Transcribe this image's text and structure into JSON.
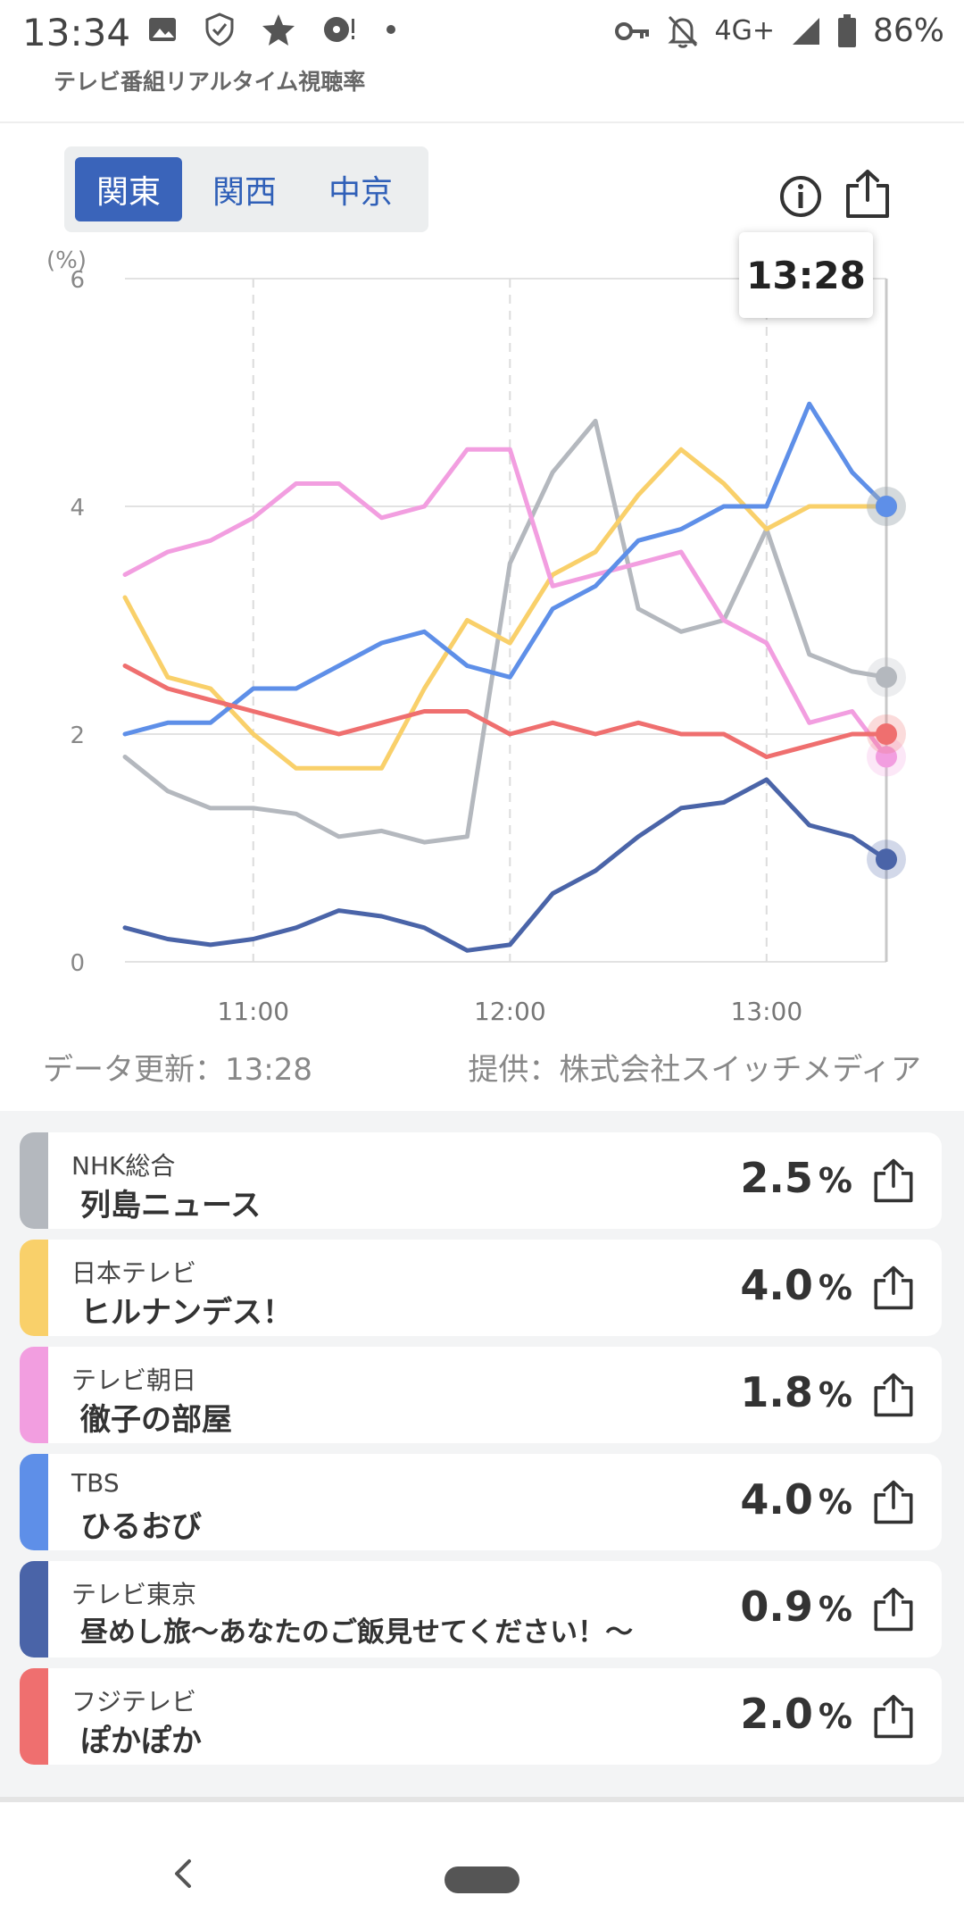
{
  "status_bar": {
    "time": "13:34",
    "network": "4G+",
    "battery": "86%",
    "left_icons": [
      "image-icon",
      "shield-icon",
      "star-icon",
      "disc-icon",
      "dot-icon"
    ],
    "right_icons": [
      "key-icon",
      "bell-off-icon",
      "signal-icon",
      "battery-icon"
    ]
  },
  "app_title": "テレビ番組リアルタイム視聴率",
  "region_tabs": [
    {
      "label": "関東",
      "active": true
    },
    {
      "label": "関西",
      "active": false
    },
    {
      "label": "中京",
      "active": false
    }
  ],
  "tooltip_time": "13:28",
  "footer": {
    "update": "データ更新：13:28",
    "provider": "提供：株式会社スイッチメディア"
  },
  "colors": {
    "nhk": "#b4b8be",
    "ntv": "#f9d06a",
    "tvasahi": "#f29ee0",
    "tbs": "#5e8fe8",
    "tvtokyo": "#4a64a8",
    "fuji": "#ef6f6f",
    "accent": "#3a64ba"
  },
  "channels": [
    {
      "channel": "NHK総合",
      "program": "列島ニュース",
      "rating": "2.5",
      "unit": "%",
      "color": "#b4b8be"
    },
    {
      "channel": "日本テレビ",
      "program": "ヒルナンデス！",
      "rating": "4.0",
      "unit": "%",
      "color": "#f9d06a"
    },
    {
      "channel": "テレビ朝日",
      "program": "徹子の部屋",
      "rating": "1.8",
      "unit": "%",
      "color": "#f29ee0"
    },
    {
      "channel": "TBS",
      "program": "ひるおび",
      "rating": "4.0",
      "unit": "%",
      "color": "#5e8fe8"
    },
    {
      "channel": "テレビ東京",
      "program": "昼めし旅〜あなたのご飯見せてください！〜",
      "rating": "0.9",
      "unit": "%",
      "color": "#4a64a8"
    },
    {
      "channel": "フジテレビ",
      "program": "ぽかぽか",
      "rating": "2.0",
      "unit": "%",
      "color": "#ef6f6f"
    }
  ],
  "chart_data": {
    "type": "line",
    "ylabel": "(%)",
    "ylim": [
      0,
      6
    ],
    "yticks": [
      "0",
      "2",
      "4",
      "6"
    ],
    "xlim": [
      "10:30",
      "13:28"
    ],
    "xticks": [
      "11:00",
      "12:00",
      "13:00"
    ],
    "grid": true,
    "x": [
      "10:30",
      "10:40",
      "10:50",
      "11:00",
      "11:10",
      "11:20",
      "11:30",
      "11:40",
      "11:50",
      "12:00",
      "12:10",
      "12:20",
      "12:30",
      "12:40",
      "12:50",
      "13:00",
      "13:10",
      "13:20",
      "13:28"
    ],
    "series": [
      {
        "name": "NHK総合",
        "color": "#b4b8be",
        "values": [
          1.8,
          1.5,
          1.35,
          1.35,
          1.3,
          1.1,
          1.15,
          1.05,
          1.1,
          3.5,
          4.3,
          4.75,
          3.1,
          2.9,
          3.0,
          3.8,
          2.7,
          2.55,
          2.5
        ]
      },
      {
        "name": "日本テレビ",
        "color": "#f9d06a",
        "values": [
          3.2,
          2.5,
          2.4,
          2.0,
          1.7,
          1.7,
          1.7,
          2.4,
          3.0,
          2.8,
          3.4,
          3.6,
          4.1,
          4.5,
          4.2,
          3.8,
          4.0,
          4.0,
          4.0
        ]
      },
      {
        "name": "テレビ朝日",
        "color": "#f29ee0",
        "values": [
          3.4,
          3.6,
          3.7,
          3.9,
          4.2,
          4.2,
          3.9,
          4.0,
          4.5,
          4.5,
          3.3,
          3.4,
          3.5,
          3.6,
          3.0,
          2.8,
          2.1,
          2.2,
          1.8
        ]
      },
      {
        "name": "TBS",
        "color": "#5e8fe8",
        "values": [
          2.0,
          2.1,
          2.1,
          2.4,
          2.4,
          2.6,
          2.8,
          2.9,
          2.6,
          2.5,
          3.1,
          3.3,
          3.7,
          3.8,
          4.0,
          4.0,
          4.9,
          4.3,
          4.0
        ]
      },
      {
        "name": "テレビ東京",
        "color": "#4a64a8",
        "values": [
          0.3,
          0.2,
          0.15,
          0.2,
          0.3,
          0.45,
          0.4,
          0.3,
          0.1,
          0.15,
          0.6,
          0.8,
          1.1,
          1.35,
          1.4,
          1.6,
          1.2,
          1.1,
          0.9
        ]
      },
      {
        "name": "フジテレビ",
        "color": "#ef6f6f",
        "values": [
          2.6,
          2.4,
          2.3,
          2.2,
          2.1,
          2.0,
          2.1,
          2.2,
          2.2,
          2.0,
          2.1,
          2.0,
          2.1,
          2.0,
          2.0,
          1.8,
          1.9,
          2.0,
          2.0
        ]
      }
    ]
  }
}
